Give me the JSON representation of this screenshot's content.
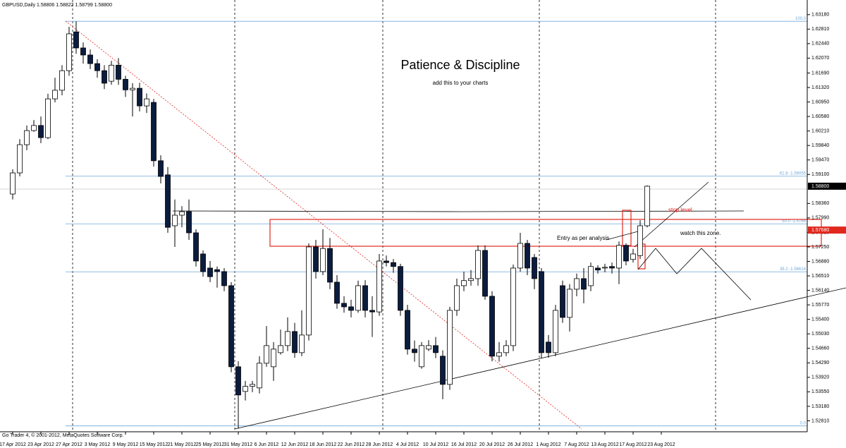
{
  "chart_data": {
    "type": "candlestick",
    "header": "GBPUSD,Daily  1.58806 1.58822 1.58799 1.58800",
    "title": "Patience & Discipline",
    "subtitle": "add this to your charts",
    "annotations": [
      "Entry as per analysis",
      "stop level",
      "watch this zone."
    ],
    "footer": "Go Trader 4, © 2001-2012, MetaQuotes Software Corp.",
    "bull_color": "#ffffff",
    "bear_color": "#0b1c3f",
    "fib_color": "#6fa8dc",
    "xlim": [
      -1.8,
      112.7
    ],
    "ylim": [
      1.5253,
      1.635
    ],
    "xticks": [
      {
        "value": 0,
        "label": "17 Apr 2012"
      },
      {
        "value": 4,
        "label": "23 Apr 2012"
      },
      {
        "value": 8,
        "label": "27 Apr 2012"
      },
      {
        "value": 12,
        "label": "3 May 2012"
      },
      {
        "value": 16,
        "label": "9 May 2012"
      },
      {
        "value": 20,
        "label": "15 May 2012"
      },
      {
        "value": 24,
        "label": "21 May 2012"
      },
      {
        "value": 28,
        "label": "25 May 2012"
      },
      {
        "value": 32,
        "label": "31 May 2012"
      },
      {
        "value": 36,
        "label": "6 Jun 2012"
      },
      {
        "value": 40,
        "label": "12 Jun 2012"
      },
      {
        "value": 44,
        "label": "18 Jun 2012"
      },
      {
        "value": 48,
        "label": "22 Jun 2012"
      },
      {
        "value": 52,
        "label": "28 Jun 2012"
      },
      {
        "value": 56,
        "label": "4 Jul 2012"
      },
      {
        "value": 60,
        "label": "10 Jul 2012"
      },
      {
        "value": 64,
        "label": "16 Jul 2012"
      },
      {
        "value": 68,
        "label": "20 Jul 2012"
      },
      {
        "value": 72,
        "label": "26 Jul 2012"
      },
      {
        "value": 76,
        "label": "1 Aug 2012"
      },
      {
        "value": 80,
        "label": "7 Aug 2012"
      },
      {
        "value": 84,
        "label": "13 Aug 2012"
      },
      {
        "value": 88,
        "label": "17 Aug 2012"
      },
      {
        "value": 92,
        "label": "23 Aug 2012"
      }
    ],
    "yticks": [
      {
        "value": 1.6318,
        "label": "1.63180"
      },
      {
        "value": 1.6281,
        "label": "1.62810"
      },
      {
        "value": 1.6244,
        "label": "1.62440"
      },
      {
        "value": 1.6207,
        "label": "1.62070"
      },
      {
        "value": 1.6169,
        "label": "1.61690"
      },
      {
        "value": 1.6132,
        "label": "1.61320"
      },
      {
        "value": 1.6095,
        "label": "1.60950"
      },
      {
        "value": 1.6058,
        "label": "1.60580"
      },
      {
        "value": 1.6021,
        "label": "1.60210"
      },
      {
        "value": 1.5984,
        "label": "1.59840"
      },
      {
        "value": 1.5947,
        "label": "1.59470"
      },
      {
        "value": 1.591,
        "label": "1.59100"
      },
      {
        "value": 1.5836,
        "label": "1.58360"
      },
      {
        "value": 1.5799,
        "label": "1.57990"
      },
      {
        "value": 1.5762,
        "label": "1.57620"
      },
      {
        "value": 1.5725,
        "label": "1.57250"
      },
      {
        "value": 1.5688,
        "label": "1.56880"
      },
      {
        "value": 1.5651,
        "label": "1.56510"
      },
      {
        "value": 1.5614,
        "label": "1.56140"
      },
      {
        "value": 1.5577,
        "label": "1.55770"
      },
      {
        "value": 1.554,
        "label": "1.55400"
      },
      {
        "value": 1.5503,
        "label": "1.55030"
      },
      {
        "value": 1.5466,
        "label": "1.54660"
      },
      {
        "value": 1.5429,
        "label": "1.54290"
      },
      {
        "value": 1.5392,
        "label": "1.53920"
      },
      {
        "value": 1.5355,
        "label": "1.53550"
      },
      {
        "value": 1.5318,
        "label": "1.53180"
      },
      {
        "value": 1.5281,
        "label": "1.52810"
      }
    ],
    "price_labels": [
      {
        "value": 1.588,
        "label": "1.58800",
        "color": "#000000"
      },
      {
        "value": 1.5768,
        "label": "1.57680",
        "color": "#e0281e"
      }
    ],
    "fibonacci": [
      {
        "value": 1.6301,
        "label": "100.0"
      },
      {
        "value": 1.59055,
        "label": "61.8  -1.59055"
      },
      {
        "value": 1.5784,
        "label": "50.0  -1.5784"
      },
      {
        "value": 1.56614,
        "label": "38.2  -1.56614"
      },
      {
        "value": 1.5268,
        "label": "0.0"
      }
    ],
    "open": [
      1.586,
      1.5914,
      1.5986,
      1.6022,
      1.6035,
      1.6004,
      1.6103,
      1.6125,
      1.6175,
      1.6274,
      1.6233,
      1.6215,
      1.6193,
      1.6175,
      1.6148,
      1.6189,
      1.6153,
      1.6126,
      1.613,
      1.6085,
      1.6094,
      1.5945,
      1.5909,
      1.5779,
      1.5806,
      1.5815,
      1.5761,
      1.5707,
      1.5671,
      1.5667,
      1.5662,
      1.5626,
      1.5419,
      1.5356,
      1.5369,
      1.5365,
      1.5428,
      1.5419,
      1.5455,
      1.5473,
      1.5509,
      1.5455,
      1.55,
      1.5725,
      1.5662,
      1.5721,
      1.5635,
      1.5581,
      1.5572,
      1.5563,
      1.5626,
      1.5563,
      1.5559,
      1.5689,
      1.5685,
      1.5675,
      1.5563,
      1.5464,
      1.5419,
      1.5464,
      1.5473,
      1.5446,
      1.5374,
      1.5563,
      1.5626,
      1.5639,
      1.5644,
      1.5716,
      1.5599,
      1.5446,
      1.5455,
      1.5473,
      1.5671,
      1.5734,
      1.5698,
      1.5662,
      1.5482,
      1.5455,
      1.5626,
      1.5545,
      1.5617,
      1.5644,
      1.5626,
      1.5671,
      1.5671,
      1.5675,
      1.5671,
      1.5729,
      1.5693,
      1.5703,
      1.5779
    ],
    "high": [
      1.5923,
      1.6,
      1.6035,
      1.6049,
      1.6058,
      1.6116,
      1.6157,
      1.6189,
      1.6287,
      1.6301,
      1.6247,
      1.6229,
      1.6204,
      1.6189,
      1.62,
      1.6207,
      1.6162,
      1.6143,
      1.6144,
      1.6117,
      1.6103,
      1.5959,
      1.5929,
      1.5846,
      1.5829,
      1.5846,
      1.577,
      1.5716,
      1.5689,
      1.5675,
      1.5671,
      1.5635,
      1.5433,
      1.5383,
      1.5383,
      1.5446,
      1.5523,
      1.5482,
      1.5514,
      1.5545,
      1.5531,
      1.5563,
      1.5734,
      1.5743,
      1.577,
      1.5748,
      1.5653,
      1.5599,
      1.559,
      1.5639,
      1.564,
      1.5599,
      1.5707,
      1.5703,
      1.5694,
      1.5682,
      1.5577,
      1.5486,
      1.5482,
      1.5487,
      1.5495,
      1.5461,
      1.5572,
      1.5644,
      1.5662,
      1.5666,
      1.5729,
      1.5729,
      1.5612,
      1.5482,
      1.5487,
      1.568,
      1.5761,
      1.5743,
      1.5707,
      1.5671,
      1.55,
      1.5577,
      1.5639,
      1.563,
      1.5657,
      1.5671,
      1.5685,
      1.5678,
      1.5682,
      1.5685,
      1.5739,
      1.5734,
      1.572,
      1.5793,
      1.5882
    ],
    "low": [
      1.5846,
      1.5905,
      1.5972,
      1.6019,
      1.599,
      1.6,
      1.6094,
      1.6112,
      1.6162,
      1.6218,
      1.6193,
      1.6179,
      1.6157,
      1.6128,
      1.6139,
      1.6139,
      1.6108,
      1.6058,
      1.6071,
      1.6067,
      1.593,
      1.5887,
      1.5761,
      1.5725,
      1.5775,
      1.5743,
      1.5675,
      1.5649,
      1.5635,
      1.5621,
      1.5612,
      1.5405,
      1.5261,
      1.5333,
      1.5354,
      1.5351,
      1.5419,
      1.5383,
      1.545,
      1.5459,
      1.5442,
      1.5446,
      1.5486,
      1.5644,
      1.5653,
      1.5617,
      1.5567,
      1.5557,
      1.5545,
      1.5557,
      1.5545,
      1.5495,
      1.5549,
      1.5675,
      1.5659,
      1.5549,
      1.545,
      1.5432,
      1.5414,
      1.5459,
      1.5441,
      1.5336,
      1.536,
      1.5549,
      1.5612,
      1.5626,
      1.5626,
      1.559,
      1.5433,
      1.5432,
      1.5446,
      1.5459,
      1.5662,
      1.5653,
      1.5617,
      1.5441,
      1.5442,
      1.5446,
      1.5531,
      1.5509,
      1.5599,
      1.5581,
      1.5612,
      1.5657,
      1.566,
      1.5657,
      1.563,
      1.5678,
      1.5685,
      1.5694,
      1.5775
    ],
    "close": [
      1.5914,
      1.5986,
      1.6022,
      1.6035,
      1.6004,
      1.6103,
      1.6125,
      1.6175,
      1.6269,
      1.6233,
      1.6215,
      1.6193,
      1.6175,
      1.6143,
      1.6189,
      1.6153,
      1.6126,
      1.613,
      1.6085,
      1.6103,
      1.5945,
      1.5905,
      1.5775,
      1.5806,
      1.5815,
      1.5761,
      1.5689,
      1.5662,
      1.5649,
      1.5662,
      1.5626,
      1.5419,
      1.5347,
      1.5369,
      1.5374,
      1.5428,
      1.5473,
      1.5464,
      1.5473,
      1.5509,
      1.5455,
      1.55,
      1.5725,
      1.5662,
      1.5721,
      1.5635,
      1.5581,
      1.5572,
      1.5563,
      1.5626,
      1.5563,
      1.5559,
      1.5689,
      1.5685,
      1.5675,
      1.5563,
      1.5464,
      1.5455,
      1.5473,
      1.5473,
      1.5455,
      1.5374,
      1.5563,
      1.5626,
      1.5639,
      1.5644,
      1.5716,
      1.5599,
      1.5446,
      1.5455,
      1.5473,
      1.5671,
      1.5734,
      1.5671,
      1.5644,
      1.5455,
      1.5455,
      1.5563,
      1.5545,
      1.5617,
      1.5644,
      1.5617,
      1.5675,
      1.5666,
      1.5673,
      1.5671,
      1.5729,
      1.5689,
      1.5707,
      1.5779,
      1.588
    ]
  }
}
